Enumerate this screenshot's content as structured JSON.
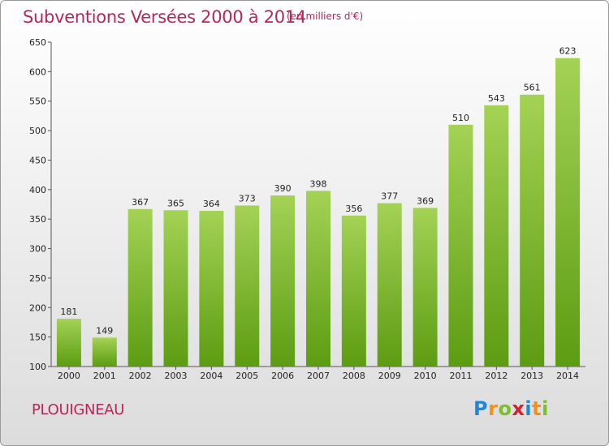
{
  "title": "Subventions Versées 2000 à 2014",
  "unit": "(en milliers d'€)",
  "commune": "PLOUIGNEAU",
  "logo": {
    "letters": [
      "P",
      "r",
      "o",
      "x",
      "i",
      "t",
      "i"
    ],
    "colors": [
      "#1e88d6",
      "#f29018",
      "#7bbf2a",
      "#d91f2f",
      "#1e88d6",
      "#f29018",
      "#7bbf2a"
    ]
  },
  "colors": {
    "bar_top": "#a4d255",
    "bar_bottom": "#5c9c12",
    "title": "#b8265a"
  },
  "chart_data": {
    "type": "bar",
    "categories": [
      "2000",
      "2001",
      "2002",
      "2003",
      "2004",
      "2005",
      "2006",
      "2007",
      "2008",
      "2009",
      "2010",
      "2011",
      "2012",
      "2013",
      "2014"
    ],
    "values": [
      181,
      149,
      367,
      365,
      364,
      373,
      390,
      398,
      356,
      377,
      369,
      510,
      543,
      561,
      623
    ],
    "ylim": [
      100,
      650
    ],
    "yticks": [
      "100",
      "150",
      "200",
      "250",
      "300",
      "350",
      "400",
      "450",
      "500",
      "550",
      "600",
      "650"
    ],
    "grid": false,
    "legend": "none"
  }
}
